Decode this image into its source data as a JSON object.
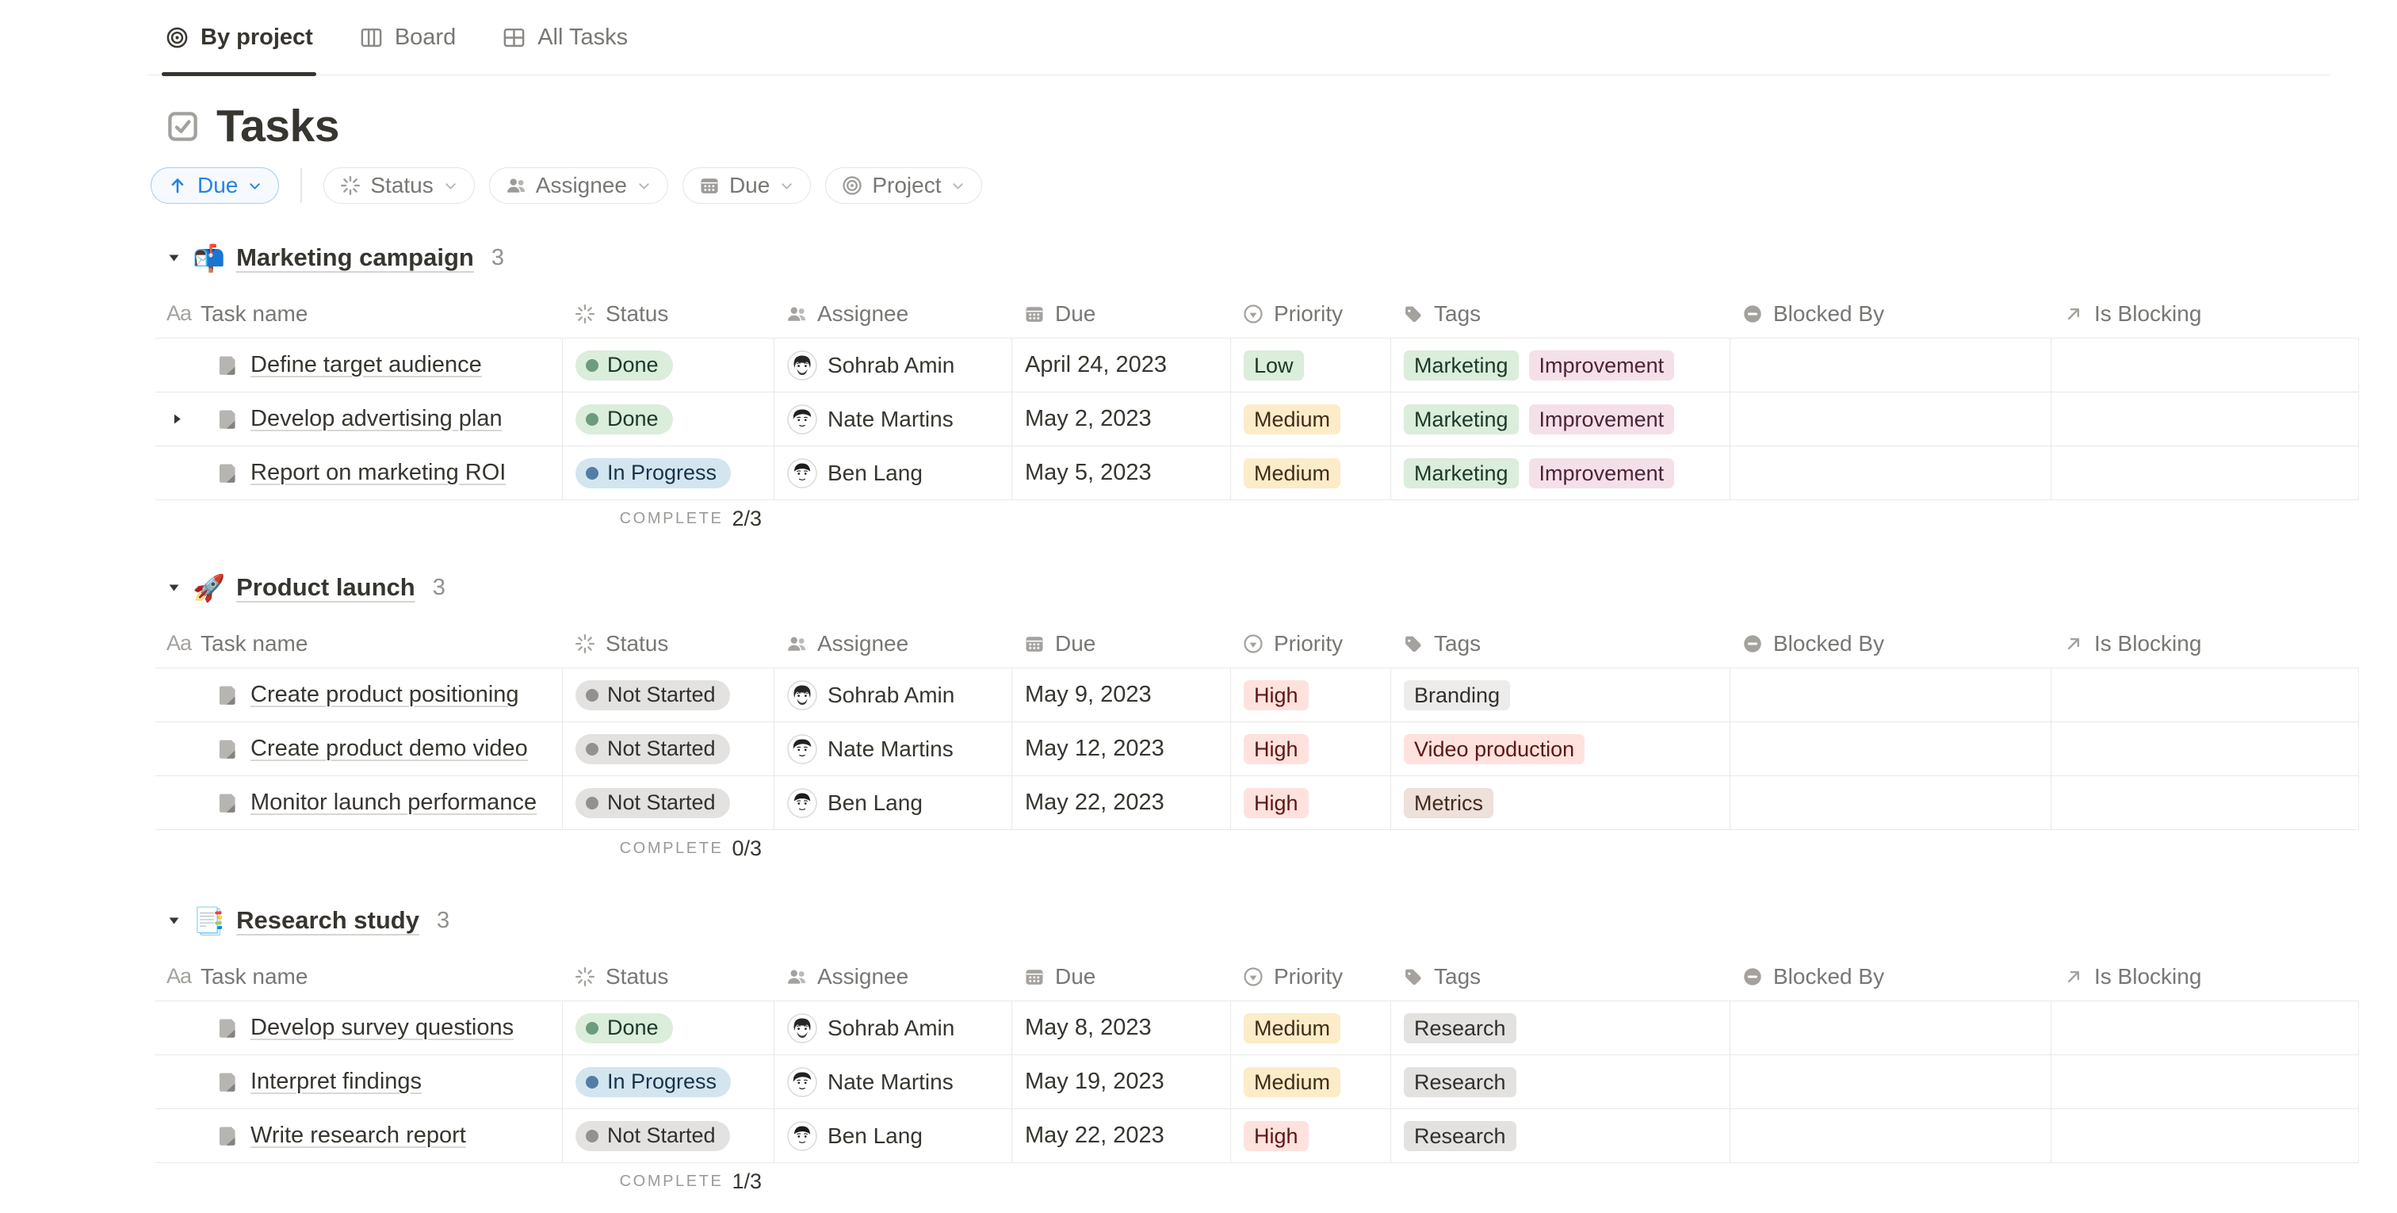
{
  "tabs": [
    {
      "label": "By project",
      "icon": "target-icon",
      "active": true
    },
    {
      "label": "Board",
      "icon": "board-icon",
      "active": false
    },
    {
      "label": "All Tasks",
      "icon": "table-icon",
      "active": false
    }
  ],
  "title": {
    "icon": "checkbox-icon",
    "text": "Tasks"
  },
  "toolbar": {
    "sort": {
      "icon": "arrow-up-icon",
      "label": "Due",
      "chevron_icon": "chevron-down-icon"
    },
    "filters": [
      {
        "label": "Status",
        "icon": "spinner-icon"
      },
      {
        "label": "Assignee",
        "icon": "people-icon"
      },
      {
        "label": "Due",
        "icon": "calendar-icon"
      },
      {
        "label": "Project",
        "icon": "target-icon"
      }
    ]
  },
  "columns": [
    {
      "label": "Task name",
      "icon": "aa-icon"
    },
    {
      "label": "Status",
      "icon": "spinner-icon"
    },
    {
      "label": "Assignee",
      "icon": "people-icon"
    },
    {
      "label": "Due",
      "icon": "calendar-icon"
    },
    {
      "label": "Priority",
      "icon": "priority-icon"
    },
    {
      "label": "Tags",
      "icon": "tag-icon"
    },
    {
      "label": "Blocked By",
      "icon": "blocked-icon"
    },
    {
      "label": "Is Blocking",
      "icon": "arrow-up-right-icon"
    }
  ],
  "groups": [
    {
      "emoji": "📬",
      "name": "Marketing campaign",
      "count": "3",
      "rows": [
        {
          "name": "Define target audience",
          "expandable": false,
          "status": "Done",
          "assignee": "Sohrab Amin",
          "avatar": "sohrab",
          "due": "April 24, 2023",
          "priority": {
            "label": "Low",
            "color": "green"
          },
          "tags": [
            {
              "label": "Marketing",
              "color": "green"
            },
            {
              "label": "Improvement",
              "color": "pink"
            }
          ],
          "blocked_by": "",
          "is_blocking": ""
        },
        {
          "name": "Develop advertising plan",
          "expandable": true,
          "status": "Done",
          "assignee": "Nate Martins",
          "avatar": "nate",
          "due": "May 2, 2023",
          "priority": {
            "label": "Medium",
            "color": "yellow"
          },
          "tags": [
            {
              "label": "Marketing",
              "color": "green"
            },
            {
              "label": "Improvement",
              "color": "pink"
            }
          ],
          "blocked_by": "",
          "is_blocking": ""
        },
        {
          "name": "Report on marketing ROI",
          "expandable": false,
          "status": "In Progress",
          "assignee": "Ben Lang",
          "avatar": "ben",
          "due": "May 5, 2023",
          "priority": {
            "label": "Medium",
            "color": "yellow"
          },
          "tags": [
            {
              "label": "Marketing",
              "color": "green"
            },
            {
              "label": "Improvement",
              "color": "pink"
            }
          ],
          "blocked_by": "",
          "is_blocking": ""
        }
      ],
      "footer": {
        "label": "COMPLETE",
        "value": "2/3"
      }
    },
    {
      "emoji": "🚀",
      "name": "Product launch",
      "count": "3",
      "rows": [
        {
          "name": "Create product positioning",
          "expandable": false,
          "status": "Not Started",
          "assignee": "Sohrab Amin",
          "avatar": "sohrab",
          "due": "May 9, 2023",
          "priority": {
            "label": "High",
            "color": "red"
          },
          "tags": [
            {
              "label": "Branding",
              "color": "lightgray"
            }
          ],
          "blocked_by": "",
          "is_blocking": ""
        },
        {
          "name": "Create product demo video",
          "expandable": false,
          "status": "Not Started",
          "assignee": "Nate Martins",
          "avatar": "nate",
          "due": "May 12, 2023",
          "priority": {
            "label": "High",
            "color": "red"
          },
          "tags": [
            {
              "label": "Video production",
              "color": "red"
            }
          ],
          "blocked_by": "",
          "is_blocking": ""
        },
        {
          "name": "Monitor launch performance",
          "expandable": false,
          "status": "Not Started",
          "assignee": "Ben Lang",
          "avatar": "ben",
          "due": "May 22, 2023",
          "priority": {
            "label": "High",
            "color": "red"
          },
          "tags": [
            {
              "label": "Metrics",
              "color": "brown"
            }
          ],
          "blocked_by": "",
          "is_blocking": ""
        }
      ],
      "footer": {
        "label": "COMPLETE",
        "value": "0/3"
      }
    },
    {
      "emoji": "📑",
      "name": "Research study",
      "count": "3",
      "rows": [
        {
          "name": "Develop survey questions",
          "expandable": false,
          "status": "Done",
          "assignee": "Sohrab Amin",
          "avatar": "sohrab",
          "due": "May 8, 2023",
          "priority": {
            "label": "Medium",
            "color": "yellow"
          },
          "tags": [
            {
              "label": "Research",
              "color": "gray"
            }
          ],
          "blocked_by": "",
          "is_blocking": ""
        },
        {
          "name": "Interpret findings",
          "expandable": false,
          "status": "In Progress",
          "assignee": "Nate Martins",
          "avatar": "nate",
          "due": "May 19, 2023",
          "priority": {
            "label": "Medium",
            "color": "yellow"
          },
          "tags": [
            {
              "label": "Research",
              "color": "gray"
            }
          ],
          "blocked_by": "",
          "is_blocking": ""
        },
        {
          "name": "Write research report",
          "expandable": false,
          "status": "Not Started",
          "assignee": "Ben Lang",
          "avatar": "ben",
          "due": "May 22, 2023",
          "priority": {
            "label": "High",
            "color": "red"
          },
          "tags": [
            {
              "label": "Research",
              "color": "gray"
            }
          ],
          "blocked_by": "",
          "is_blocking": ""
        }
      ],
      "footer": {
        "label": "COMPLETE",
        "value": "1/3"
      }
    }
  ],
  "colors": {
    "accent": "#2383E2",
    "status": {
      "Done": {
        "bg": "#DBEDDB",
        "dot": "#6C9B7D",
        "text": "#1C3829"
      },
      "In Progress": {
        "bg": "#D3E5EF",
        "dot": "#527DA5",
        "text": "#183347"
      },
      "Not Started": {
        "bg": "#E3E2E0",
        "dot": "#91918E",
        "text": "#32302C"
      }
    },
    "badge": {
      "green": {
        "bg": "#DBEDDB",
        "text": "#1C3829"
      },
      "yellow": {
        "bg": "#FDECC8",
        "text": "#402C1B"
      },
      "red": {
        "bg": "#FFE2DD",
        "text": "#5D1715"
      },
      "pink": {
        "bg": "#F5E0E9",
        "text": "#4C2337"
      },
      "brown": {
        "bg": "#EEE0DA",
        "text": "#442A1E"
      },
      "gray": {
        "bg": "#E3E2E0",
        "text": "#32302C"
      },
      "lightgray": {
        "bg": "#EDECEA",
        "text": "#32302C"
      }
    }
  }
}
